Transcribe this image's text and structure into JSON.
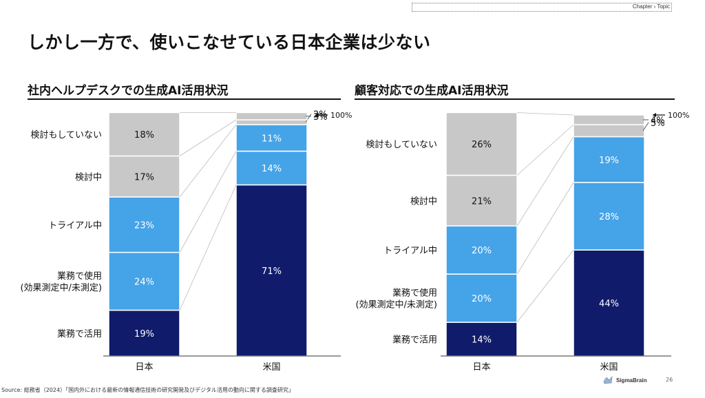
{
  "header": {
    "chapter": "Chapter › Topic"
  },
  "page_title": "しかし一方で、使いこなせている日本企業は少ない",
  "chart_data": [
    {
      "type": "bar",
      "stacked": true,
      "title": "社内ヘルプデスクでの生成AI活用状況",
      "categories": [
        "日本",
        "米国"
      ],
      "series_labels": [
        "業務で活用",
        "業務で使用\n(効果測定中/未測定)",
        "トライアル中",
        "検討中",
        "検討もしていない"
      ],
      "series": [
        {
          "name": "業務で活用",
          "values": [
            19,
            71
          ],
          "color": "#101c6b"
        },
        {
          "name": "業務で使用(効果測定中/未測定)",
          "values": [
            24,
            14
          ],
          "color": "#45a3e8"
        },
        {
          "name": "トライアル中",
          "values": [
            23,
            11
          ],
          "color": "#45a3e8"
        },
        {
          "name": "検討中",
          "values": [
            17,
            2
          ],
          "color": "#c8c8c8"
        },
        {
          "name": "検討もしていない",
          "values": [
            18,
            3
          ],
          "color": "#c8c8c8"
        }
      ],
      "ylim": [
        0,
        100
      ],
      "annotation": "100%"
    },
    {
      "type": "bar",
      "stacked": true,
      "title": "顧客対応での生成AI活用状況",
      "categories": [
        "日本",
        "米国"
      ],
      "series_labels": [
        "業務で活用",
        "業務で使用\n(効果測定中/未測定)",
        "トライアル中",
        "検討中",
        "検討もしていない"
      ],
      "series": [
        {
          "name": "業務で活用",
          "values": [
            14,
            44
          ],
          "color": "#101c6b"
        },
        {
          "name": "業務で使用(効果測定中/未測定)",
          "values": [
            20,
            28
          ],
          "color": "#45a3e8"
        },
        {
          "name": "トライアル中",
          "values": [
            20,
            19
          ],
          "color": "#45a3e8"
        },
        {
          "name": "検討中",
          "values": [
            21,
            5
          ],
          "color": "#c8c8c8"
        },
        {
          "name": "検討もしていない",
          "values": [
            26,
            4
          ],
          "color": "#c8c8c8"
        }
      ],
      "ylim": [
        0,
        100
      ],
      "annotation": "100%"
    }
  ],
  "footer": {
    "source": "Source: 総務省（2024）「国内外における最新の情報通信技術の研究開発及びデジタル活用の動向に関する調査研究」",
    "logo": "SigmaBrain",
    "page_number": "26"
  }
}
